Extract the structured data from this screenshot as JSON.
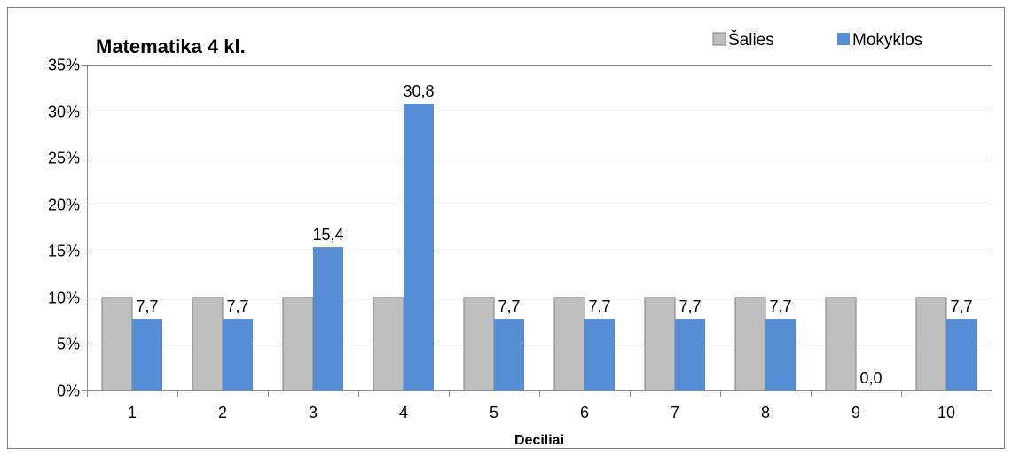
{
  "chart_data": {
    "type": "bar",
    "title": "Matematika 4 kl.",
    "xlabel": "Deciliai",
    "ylabel": "",
    "categories": [
      "1",
      "2",
      "3",
      "4",
      "5",
      "6",
      "7",
      "8",
      "9",
      "10"
    ],
    "series": [
      {
        "name": "Šalies",
        "values": [
          10,
          10,
          10,
          10,
          10,
          10,
          10,
          10,
          10,
          10
        ],
        "color": "#bfbfbf",
        "labels": [
          "",
          "",
          "",
          "",
          "",
          "",
          "",
          "",
          "",
          ""
        ]
      },
      {
        "name": "Mokyklos",
        "values": [
          7.7,
          7.7,
          15.4,
          30.8,
          7.7,
          7.7,
          7.7,
          7.7,
          0.0,
          7.7
        ],
        "color": "#558ed5",
        "labels": [
          "7,7",
          "7,7",
          "15,4",
          "30,8",
          "7,7",
          "7,7",
          "7,7",
          "7,7",
          "0,0",
          "7,7"
        ]
      }
    ],
    "ylim": [
      0,
      35
    ],
    "yticks": [
      0,
      5,
      10,
      15,
      20,
      25,
      30,
      35
    ],
    "ytick_labels": [
      "0%",
      "5%",
      "10%",
      "15%",
      "20%",
      "25%",
      "30%",
      "35%"
    ],
    "grid": "horizontal",
    "legend": "top-right"
  }
}
